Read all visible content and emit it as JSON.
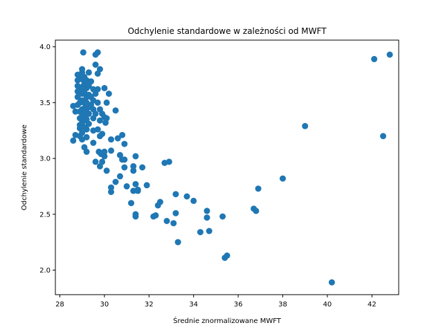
{
  "chart_data": {
    "type": "scatter",
    "title": "Odchylenie standardowe w zależności od MWFT",
    "xlabel": "Średnie znormalizowane MWFT",
    "ylabel": "Odchylenie standardowe",
    "xlim": [
      27.8,
      43.2
    ],
    "ylim": [
      1.78,
      4.06
    ],
    "xticks": [
      "28",
      "30",
      "32",
      "34",
      "36",
      "38",
      "40",
      "42"
    ],
    "yticks": [
      "2.0",
      "2.5",
      "3.0",
      "3.5",
      "4.0"
    ],
    "grid": false,
    "marker_color": "#1f77b4",
    "points": [
      [
        28.6,
        3.16
      ],
      [
        28.7,
        3.21
      ],
      [
        28.6,
        3.47
      ],
      [
        28.7,
        3.42
      ],
      [
        28.8,
        3.48
      ],
      [
        28.8,
        3.55
      ],
      [
        28.8,
        3.6
      ],
      [
        28.8,
        3.65
      ],
      [
        28.8,
        3.7
      ],
      [
        28.8,
        3.75
      ],
      [
        28.9,
        3.72
      ],
      [
        28.9,
        3.62
      ],
      [
        28.9,
        3.5
      ],
      [
        28.9,
        3.42
      ],
      [
        28.9,
        3.36
      ],
      [
        28.9,
        3.3
      ],
      [
        28.9,
        3.27
      ],
      [
        28.9,
        3.2
      ],
      [
        29.0,
        3.17
      ],
      [
        29.0,
        3.23
      ],
      [
        29.0,
        3.32
      ],
      [
        29.0,
        3.38
      ],
      [
        29.0,
        3.44
      ],
      [
        29.0,
        3.52
      ],
      [
        29.0,
        3.58
      ],
      [
        29.0,
        3.64
      ],
      [
        29.0,
        3.71
      ],
      [
        29.0,
        3.77
      ],
      [
        29.0,
        3.8
      ],
      [
        29.05,
        3.95
      ],
      [
        29.1,
        3.73
      ],
      [
        29.1,
        3.67
      ],
      [
        29.1,
        3.59
      ],
      [
        29.1,
        3.5
      ],
      [
        29.1,
        3.45
      ],
      [
        29.1,
        3.39
      ],
      [
        29.1,
        3.34
      ],
      [
        29.1,
        3.28
      ],
      [
        29.1,
        3.1
      ],
      [
        29.2,
        3.06
      ],
      [
        29.2,
        3.19
      ],
      [
        29.2,
        3.26
      ],
      [
        29.2,
        3.35
      ],
      [
        29.2,
        3.42
      ],
      [
        29.2,
        3.5
      ],
      [
        29.2,
        3.55
      ],
      [
        29.2,
        3.63
      ],
      [
        29.2,
        3.7
      ],
      [
        29.3,
        3.77
      ],
      [
        29.3,
        3.65
      ],
      [
        29.3,
        3.57
      ],
      [
        29.3,
        3.46
      ],
      [
        29.3,
        3.4
      ],
      [
        29.3,
        3.31
      ],
      [
        29.4,
        3.48
      ],
      [
        29.4,
        3.55
      ],
      [
        29.4,
        3.69
      ],
      [
        29.5,
        3.62
      ],
      [
        29.5,
        3.52
      ],
      [
        29.5,
        3.44
      ],
      [
        29.5,
        3.36
      ],
      [
        29.5,
        3.25
      ],
      [
        29.5,
        3.14
      ],
      [
        29.6,
        3.84
      ],
      [
        29.6,
        3.93
      ],
      [
        29.6,
        3.4
      ],
      [
        29.6,
        3.58
      ],
      [
        29.7,
        3.26
      ],
      [
        29.7,
        3.5
      ],
      [
        29.7,
        3.62
      ],
      [
        29.7,
        3.76
      ],
      [
        29.7,
        3.95
      ],
      [
        29.6,
        2.97
      ],
      [
        29.75,
        3.06
      ],
      [
        29.8,
        2.93
      ],
      [
        29.8,
        3.2
      ],
      [
        29.8,
        3.34
      ],
      [
        29.8,
        3.44
      ],
      [
        29.8,
        3.8
      ],
      [
        29.85,
        3.04
      ],
      [
        29.9,
        2.97
      ],
      [
        29.9,
        3.05
      ],
      [
        29.9,
        3.22
      ],
      [
        29.9,
        3.4
      ],
      [
        30.0,
        3.02
      ],
      [
        30.0,
        3.06
      ],
      [
        30.0,
        3.37
      ],
      [
        30.0,
        3.63
      ],
      [
        30.05,
        3.32
      ],
      [
        30.1,
        3.5
      ],
      [
        30.1,
        2.89
      ],
      [
        30.1,
        3.36
      ],
      [
        30.2,
        3.58
      ],
      [
        30.3,
        2.7
      ],
      [
        30.3,
        2.74
      ],
      [
        30.3,
        3.07
      ],
      [
        30.3,
        3.17
      ],
      [
        30.5,
        2.79
      ],
      [
        30.5,
        3.43
      ],
      [
        30.6,
        3.18
      ],
      [
        30.7,
        2.84
      ],
      [
        30.7,
        3.03
      ],
      [
        30.8,
        2.99
      ],
      [
        30.8,
        3.21
      ],
      [
        30.9,
        3.13
      ],
      [
        30.9,
        2.99
      ],
      [
        30.9,
        2.92
      ],
      [
        31.0,
        2.75
      ],
      [
        31.2,
        2.6
      ],
      [
        31.3,
        2.71
      ],
      [
        31.3,
        2.89
      ],
      [
        31.3,
        2.93
      ],
      [
        31.4,
        2.48
      ],
      [
        31.4,
        2.5
      ],
      [
        31.4,
        3.02
      ],
      [
        31.4,
        2.77
      ],
      [
        31.5,
        2.71
      ],
      [
        31.5,
        2.72
      ],
      [
        31.7,
        2.92
      ],
      [
        31.9,
        2.76
      ],
      [
        32.2,
        2.48
      ],
      [
        32.3,
        2.49
      ],
      [
        32.4,
        2.58
      ],
      [
        32.5,
        2.61
      ],
      [
        32.7,
        2.96
      ],
      [
        32.8,
        2.44
      ],
      [
        32.9,
        2.97
      ],
      [
        33.1,
        2.42
      ],
      [
        33.2,
        2.68
      ],
      [
        33.2,
        2.51
      ],
      [
        33.3,
        2.25
      ],
      [
        33.7,
        2.66
      ],
      [
        34.0,
        2.62
      ],
      [
        34.3,
        2.34
      ],
      [
        34.6,
        2.53
      ],
      [
        34.6,
        2.47
      ],
      [
        34.7,
        2.35
      ],
      [
        35.3,
        2.48
      ],
      [
        35.4,
        2.11
      ],
      [
        35.5,
        2.13
      ],
      [
        36.7,
        2.55
      ],
      [
        36.8,
        2.53
      ],
      [
        36.9,
        2.73
      ],
      [
        38.0,
        2.82
      ],
      [
        39.0,
        3.29
      ],
      [
        40.2,
        1.89
      ],
      [
        42.1,
        3.89
      ],
      [
        42.5,
        3.2
      ],
      [
        42.8,
        3.93
      ]
    ]
  }
}
